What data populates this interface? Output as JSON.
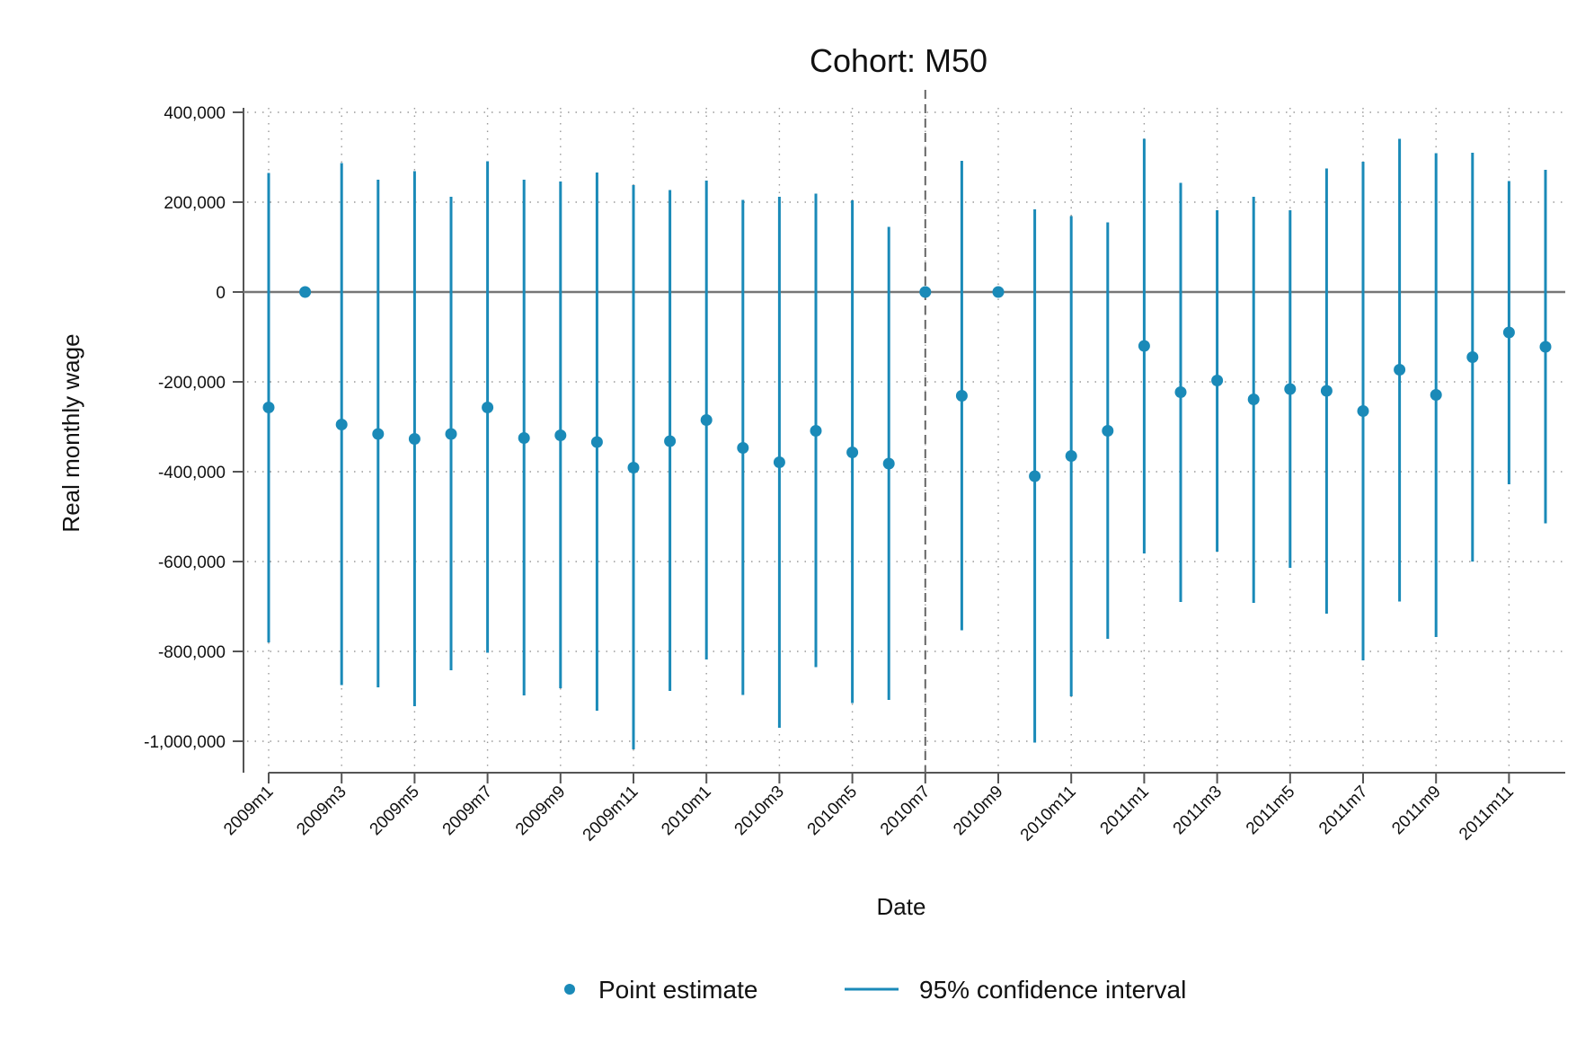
{
  "chart_data": {
    "type": "scatter",
    "title": "Cohort: M50",
    "xlabel": "Date",
    "ylabel": "Real monthly wage",
    "ylim": [
      -1000000,
      400000
    ],
    "yticks": [
      400000,
      200000,
      0,
      -200000,
      -400000,
      -600000,
      -800000,
      -1000000
    ],
    "ytick_labels": [
      "400,000",
      "200,000",
      "0",
      "-200,000",
      "-400,000",
      "-600,000",
      "-800,000",
      "-1,000,000"
    ],
    "x": [
      "2009m1",
      "2009m2",
      "2009m3",
      "2009m4",
      "2009m5",
      "2009m6",
      "2009m7",
      "2009m8",
      "2009m9",
      "2009m10",
      "2009m11",
      "2009m12",
      "2010m1",
      "2010m2",
      "2010m3",
      "2010m4",
      "2010m5",
      "2010m6",
      "2010m7",
      "2010m8",
      "2010m9",
      "2010m10",
      "2010m11",
      "2010m12",
      "2011m1",
      "2011m2",
      "2011m3",
      "2011m4",
      "2011m5",
      "2011m6",
      "2011m7",
      "2011m8",
      "2011m9",
      "2011m10",
      "2011m11",
      "2011m12"
    ],
    "xtick_labels": [
      "2009m1",
      "2009m3",
      "2009m5",
      "2009m7",
      "2009m9",
      "2009m11",
      "2010m1",
      "2010m3",
      "2010m5",
      "2010m7",
      "2010m9",
      "2010m11",
      "2011m1",
      "2011m3",
      "2011m5",
      "2011m7",
      "2011m9",
      "2011m11"
    ],
    "reference_line_x": "2010m7",
    "reference_line_y": 0,
    "grid": true,
    "legend_position": "bottom",
    "series": [
      {
        "name": "Point estimate",
        "color": "#1a8ab8",
        "values": [
          -257000,
          0,
          -295000,
          -316000,
          -327000,
          -316000,
          -257000,
          -325000,
          -319000,
          -334000,
          -391000,
          -332000,
          -285000,
          -347000,
          -379000,
          -309000,
          -357000,
          -382000,
          0,
          -231000,
          0,
          -410000,
          -365000,
          -309000,
          -120000,
          -223000,
          -197000,
          -239000,
          -216000,
          -220000,
          -265000,
          -173000,
          -229000,
          -145000,
          -90000,
          -122000
        ]
      },
      {
        "name": "95% confidence interval",
        "color": "#1a8ab8",
        "lower": [
          -780000,
          null,
          -875000,
          -880000,
          -922000,
          -842000,
          -803000,
          -898000,
          -882000,
          -932000,
          -1018000,
          -888000,
          -818000,
          -897000,
          -970000,
          -835000,
          -915000,
          -908000,
          null,
          -753000,
          null,
          -1003000,
          -900000,
          -772000,
          -582000,
          -690000,
          -578000,
          -692000,
          -614000,
          -716000,
          -820000,
          -689000,
          -768000,
          -600000,
          -428000,
          -515000
        ],
        "upper": [
          265000,
          null,
          287000,
          250000,
          269000,
          212000,
          291000,
          250000,
          246000,
          266000,
          238000,
          227000,
          248000,
          205000,
          212000,
          219000,
          204000,
          145000,
          null,
          292000,
          null,
          184000,
          169000,
          155000,
          341000,
          243000,
          182000,
          212000,
          182000,
          275000,
          290000,
          341000,
          309000,
          310000,
          247000,
          272000
        ]
      }
    ]
  }
}
